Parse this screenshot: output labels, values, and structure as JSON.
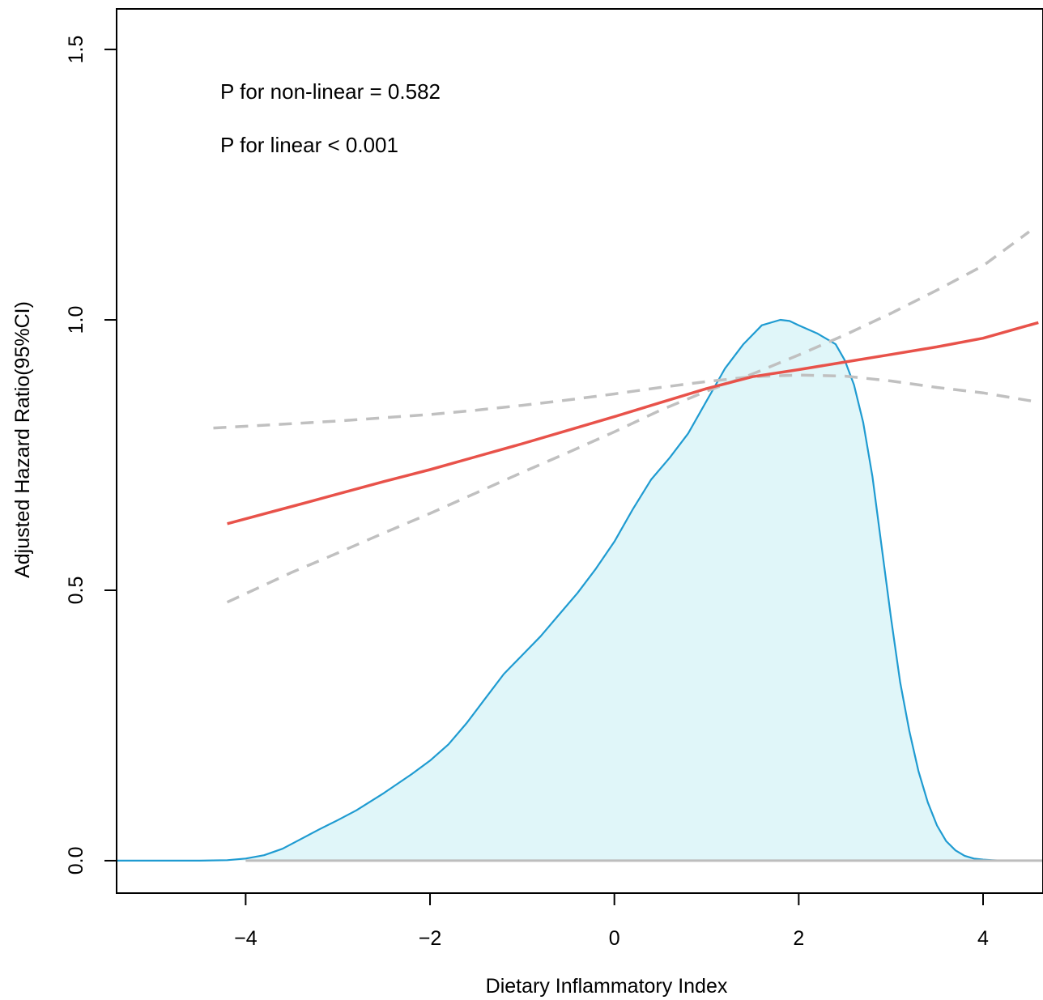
{
  "chart_data": {
    "type": "line",
    "xlabel": "Dietary Inflammatory Index",
    "ylabel": "Adjusted Hazard Ratio(95%CI)",
    "xlim": [
      -5.4,
      4.65
    ],
    "ylim": [
      -0.06,
      1.575
    ],
    "x_ticks": [
      -4,
      -2,
      0,
      2,
      4
    ],
    "x_tick_labels": [
      "−4",
      "−2",
      "0",
      "2",
      "4"
    ],
    "y_ticks": [
      0.0,
      0.5,
      1.0,
      1.5
    ],
    "y_tick_labels": [
      "0.0",
      "0.5",
      "1.0",
      "1.5"
    ],
    "grid": false,
    "annotations": [
      "P for non-linear = 0.582",
      "P for linear < 0.001"
    ],
    "reference_line": {
      "y": 0.0,
      "color": "#bdbdbd"
    },
    "series": [
      {
        "role": "hazard-ratio",
        "style": "solid",
        "color": "#e8524a",
        "x": [
          -4.2,
          -3.5,
          -3.0,
          -2.5,
          -2.0,
          -1.5,
          -1.0,
          -0.5,
          0.0,
          0.5,
          1.0,
          1.5,
          2.0,
          2.5,
          3.0,
          3.5,
          4.0,
          4.6
        ],
        "y": [
          0.623,
          0.655,
          0.678,
          0.701,
          0.723,
          0.747,
          0.771,
          0.796,
          0.821,
          0.847,
          0.873,
          0.895,
          0.908,
          0.922,
          0.936,
          0.95,
          0.966,
          0.995
        ]
      },
      {
        "role": "upper-95ci",
        "style": "dashed",
        "color": "#c0c0c0",
        "x": [
          -4.35,
          -3.5,
          -3.0,
          -2.5,
          -2.0,
          -1.5,
          -1.0,
          -0.5,
          0.0,
          0.5,
          1.0,
          1.5,
          2.0,
          2.5,
          3.0,
          3.5,
          4.0,
          4.6
        ],
        "y": [
          0.8,
          0.808,
          0.813,
          0.819,
          0.825,
          0.833,
          0.842,
          0.852,
          0.863,
          0.875,
          0.886,
          0.895,
          0.898,
          0.896,
          0.887,
          0.875,
          0.865,
          0.848
        ]
      },
      {
        "role": "lower-95ci",
        "style": "dashed",
        "color": "#c0c0c0",
        "x": [
          -4.2,
          -3.5,
          -3.0,
          -2.5,
          -2.0,
          -1.5,
          -1.0,
          -0.5,
          0.0,
          0.5,
          1.0,
          1.5,
          2.0,
          2.5,
          3.0,
          3.5,
          4.0,
          4.5
        ],
        "y": [
          0.478,
          0.533,
          0.569,
          0.606,
          0.642,
          0.68,
          0.718,
          0.755,
          0.793,
          0.833,
          0.868,
          0.9,
          0.935,
          0.972,
          1.012,
          1.055,
          1.1,
          1.163
        ]
      },
      {
        "role": "density",
        "style": "filled-area",
        "color": "#1f9bd1",
        "fill": "#e0f6f9",
        "x": [
          -5.4,
          -4.5,
          -4.2,
          -4.0,
          -3.8,
          -3.6,
          -3.4,
          -3.2,
          -3.0,
          -2.8,
          -2.5,
          -2.2,
          -2.0,
          -1.8,
          -1.6,
          -1.4,
          -1.2,
          -1.0,
          -0.8,
          -0.6,
          -0.4,
          -0.2,
          0.0,
          0.2,
          0.4,
          0.6,
          0.8,
          1.0,
          1.2,
          1.4,
          1.6,
          1.8,
          1.9,
          2.0,
          2.2,
          2.4,
          2.5,
          2.6,
          2.7,
          2.8,
          2.9,
          3.0,
          3.1,
          3.2,
          3.3,
          3.4,
          3.5,
          3.6,
          3.7,
          3.8,
          3.9,
          4.0,
          4.1,
          4.2,
          4.35,
          4.65
        ],
        "y": [
          0.0,
          0.0,
          0.001,
          0.004,
          0.01,
          0.022,
          0.04,
          0.058,
          0.075,
          0.093,
          0.125,
          0.16,
          0.185,
          0.215,
          0.255,
          0.3,
          0.345,
          0.38,
          0.415,
          0.455,
          0.495,
          0.54,
          0.59,
          0.65,
          0.705,
          0.745,
          0.79,
          0.85,
          0.91,
          0.955,
          0.99,
          1.0,
          0.998,
          0.99,
          0.975,
          0.955,
          0.925,
          0.88,
          0.81,
          0.71,
          0.58,
          0.45,
          0.33,
          0.24,
          0.165,
          0.108,
          0.065,
          0.036,
          0.019,
          0.009,
          0.004,
          0.002,
          0.001,
          0.0,
          0.0,
          0.0
        ]
      }
    ]
  }
}
